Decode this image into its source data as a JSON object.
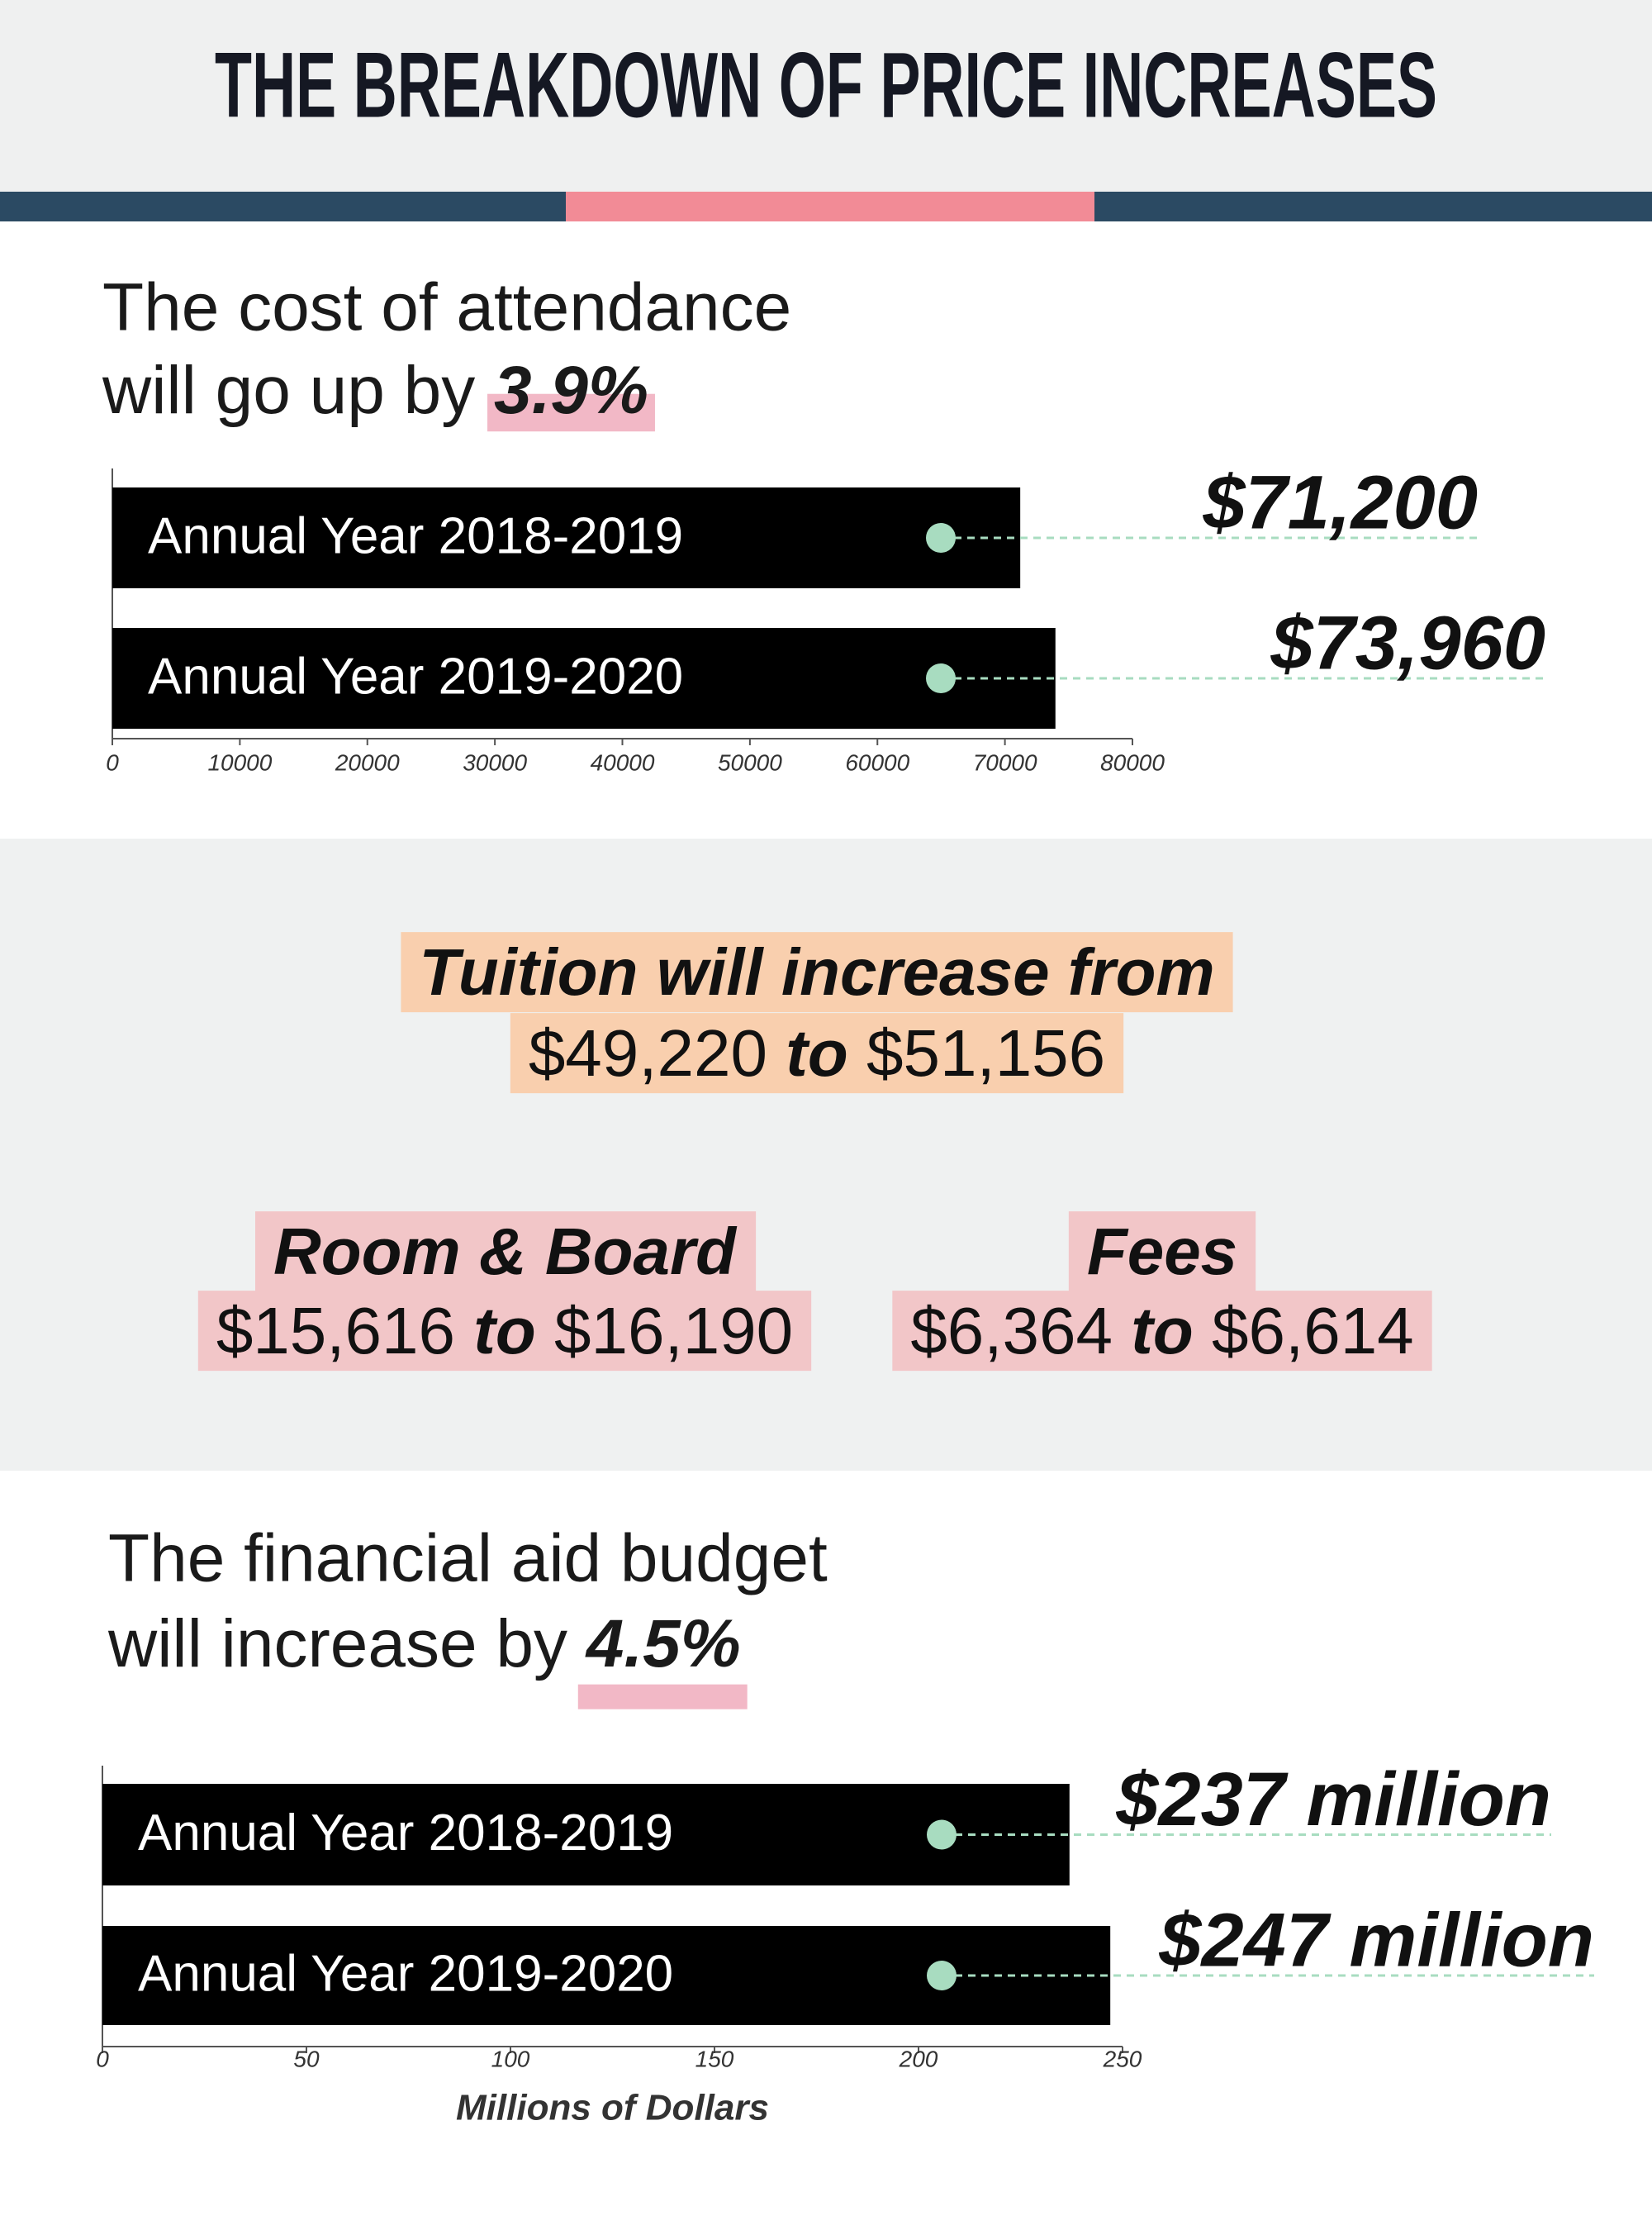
{
  "title": "THE BREAKDOWN OF PRICE INCREASES",
  "chart_data": [
    {
      "type": "bar",
      "orientation": "horizontal",
      "heading": "The cost of attendance",
      "heading_line2": "will go up by",
      "highlight": "3.9%",
      "categories": [
        "Annual Year 2018-2019",
        "Annual Year 2019-2020"
      ],
      "values": [
        71200,
        73960
      ],
      "value_labels": [
        "$71,200",
        "$73,960"
      ],
      "color": "#000000",
      "xlim": [
        0,
        80000
      ],
      "xticks": [
        0,
        10000,
        20000,
        30000,
        40000,
        50000,
        60000,
        70000,
        80000
      ]
    },
    {
      "type": "bar",
      "orientation": "horizontal",
      "heading": "The financial aid budget",
      "heading_line2": "will increase by",
      "highlight": "4.5%",
      "categories": [
        "Annual Year 2018-2019",
        "Annual Year 2019-2020"
      ],
      "values": [
        237,
        247
      ],
      "value_labels": [
        "$237 million",
        "$247 million"
      ],
      "color": "#000000",
      "xlim": [
        0,
        250
      ],
      "xticks": [
        0,
        50,
        100,
        150,
        200,
        250
      ],
      "xlabel": "Millions of Dollars"
    }
  ],
  "tuition": {
    "label": "Tuition will increase from",
    "old": "$49,220",
    "to": "to",
    "new": "$51,156"
  },
  "room_board": {
    "label": "Room & Board",
    "old": "$15,616",
    "to": "to",
    "new": "$16,190"
  },
  "fees": {
    "label": "Fees",
    "old": "$6,364",
    "to": "to",
    "new": "$6,614"
  }
}
